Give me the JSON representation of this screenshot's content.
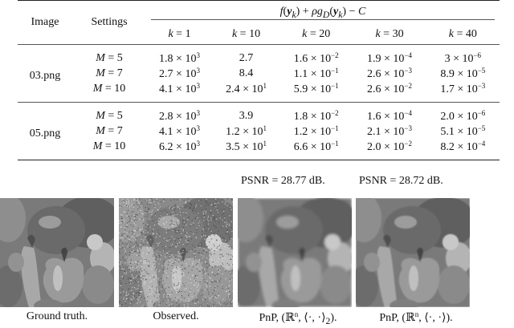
{
  "table": {
    "head": {
      "image": "Image",
      "settings": "Settings",
      "objective": "f(y_k) + ρg_D(y_k) − C",
      "k_label": "k =",
      "k_values": [
        "1",
        "10",
        "20",
        "30",
        "40"
      ]
    },
    "groups": [
      {
        "image": "03.png",
        "rows": [
          {
            "M": "5",
            "values": [
              [
                "1.8",
                "3"
              ],
              [
                "2.7",
                ""
              ],
              [
                "1.6",
                "−2"
              ],
              [
                "1.9",
                "−4"
              ],
              [
                "3",
                "−6"
              ]
            ]
          },
          {
            "M": "7",
            "values": [
              [
                "2.7",
                "3"
              ],
              [
                "8.4",
                ""
              ],
              [
                "1.1",
                "−1"
              ],
              [
                "2.6",
                "−3"
              ],
              [
                "8.9",
                "−5"
              ]
            ]
          },
          {
            "M": "10",
            "values": [
              [
                "4.1",
                "3"
              ],
              [
                "2.4",
                "1"
              ],
              [
                "5.9",
                "−1"
              ],
              [
                "2.6",
                "−2"
              ],
              [
                "1.7",
                "−3"
              ]
            ]
          }
        ]
      },
      {
        "image": "05.png",
        "rows": [
          {
            "M": "5",
            "values": [
              [
                "2.8",
                "3"
              ],
              [
                "3.9",
                ""
              ],
              [
                "1.8",
                "−2"
              ],
              [
                "1.6",
                "−4"
              ],
              [
                "2.0",
                "−6"
              ]
            ]
          },
          {
            "M": "7",
            "values": [
              [
                "4.1",
                "3"
              ],
              [
                "1.2",
                "1"
              ],
              [
                "1.2",
                "−1"
              ],
              [
                "2.1",
                "−3"
              ],
              [
                "5.1",
                "−5"
              ]
            ]
          },
          {
            "M": "10",
            "values": [
              [
                "6.2",
                "3"
              ],
              [
                "3.5",
                "1"
              ],
              [
                "6.6",
                "−1"
              ],
              [
                "2.0",
                "−2"
              ],
              [
                "8.2",
                "−4"
              ]
            ]
          }
        ]
      }
    ],
    "M_label": "M =",
    "times": "× 10"
  },
  "figures": {
    "psnr": [
      "",
      "",
      "PSNR = 28.77 dB.",
      "PSNR = 28.72 dB."
    ],
    "captions": {
      "ground_truth": "Ground truth.",
      "observed": "Observed.",
      "pnp_prefix": "PnP, ",
      "pnp_inner_product_2": "⟨·, ·⟩",
      "pnp_inner_product": "⟨·, ·⟩",
      "pnp_space": "ℝ",
      "pnp_exp": "n"
    },
    "panels": [
      "ground-truth",
      "observed",
      "pnp-l2",
      "pnp-learned"
    ]
  }
}
